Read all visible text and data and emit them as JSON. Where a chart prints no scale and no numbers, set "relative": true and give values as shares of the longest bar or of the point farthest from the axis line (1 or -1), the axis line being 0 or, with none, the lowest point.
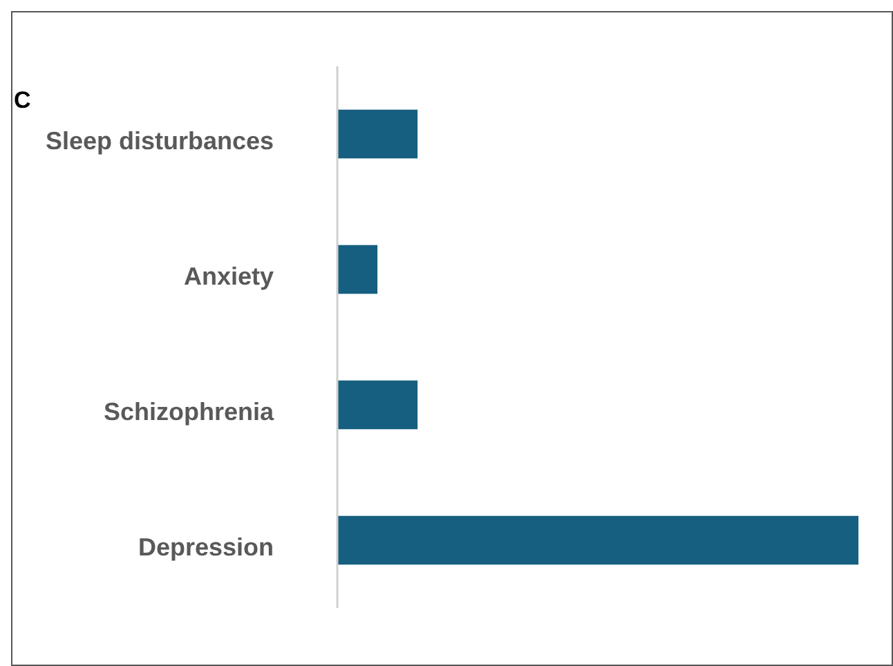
{
  "chart_data": {
    "type": "bar",
    "title": "C",
    "orientation": "horizontal",
    "relative": true,
    "categories": [
      "Sleep disturbances",
      "Anxiety",
      "Schizophrenia",
      "Depression"
    ],
    "values": [
      0.154,
      0.077,
      0.154,
      1
    ],
    "color": "#175f80"
  }
}
